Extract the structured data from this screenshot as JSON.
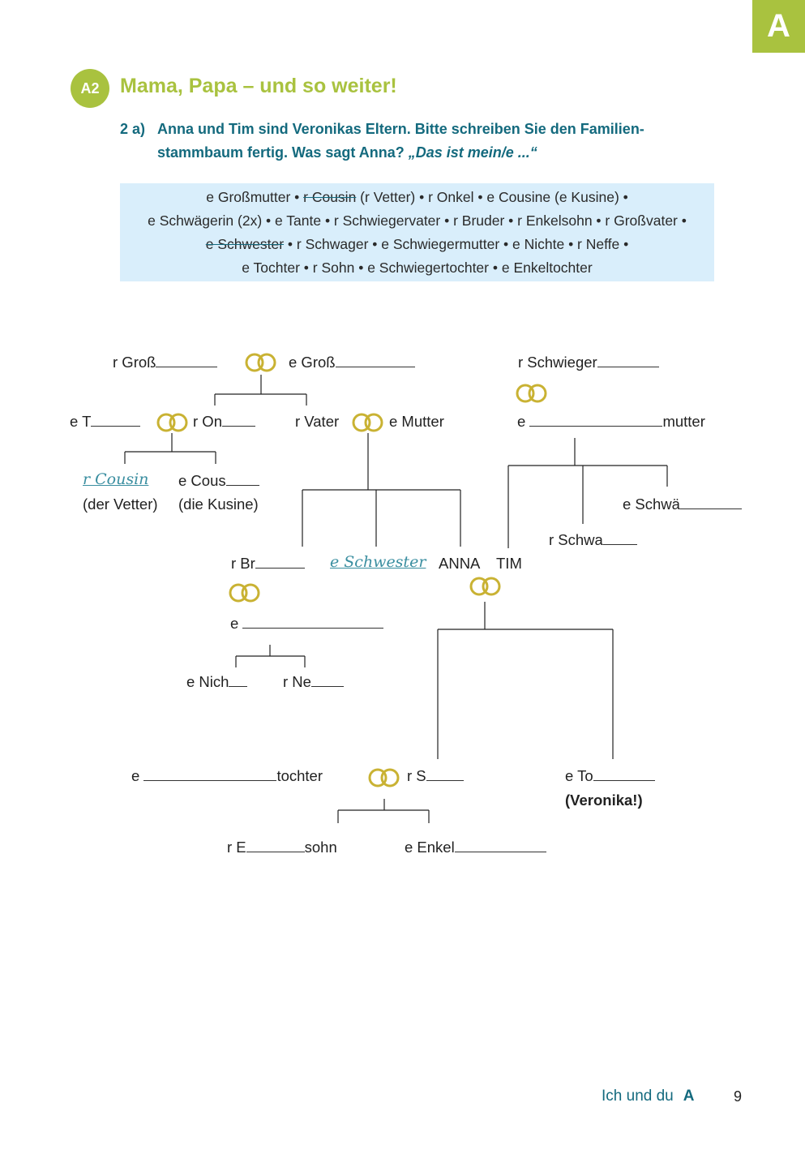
{
  "tab_letter": "A",
  "section_badge": "A2",
  "heading": "Mama, Papa – und so weiter!",
  "task": {
    "number": "2 a)",
    "line1": "Anna und Tim sind Veronikas Eltern. Bitte schreiben Sie den Familien-",
    "line2_text": "stammbaum fertig. Was sagt Anna? ",
    "line2_quote": "„Das ist mein/e ...“"
  },
  "wordbox": {
    "row1_a": "e Großmutter • ",
    "row1_strike": "r Cousin",
    "row1_b": " (r Vetter) • r Onkel • e Cousine (e Kusine) •",
    "row2": "e Schwägerin (2x) • e Tante • r Schwiegervater • r Bruder • r Enkelsohn • r Großvater •",
    "row3_strike": "e Schwester",
    "row3_b": " • r Schwager • e Schwiegermutter • e Nichte • r Neffe •",
    "row4": "e Tochter • r Sohn • e Schwiegertochter • e Enkeltochter"
  },
  "tree": {
    "grossvater": "r Groß",
    "grossmutter": "e Groß",
    "schwiegervater": "r Schwieger",
    "tante": "e T",
    "onkel": "r On",
    "vater": "r Vater",
    "mutter": "e Mutter",
    "schwiegermutter_prefix": "e",
    "schwiegermutter_suffix": "mutter",
    "cousin_answer": "r Cousin",
    "cousin_note": "(der Vetter)",
    "cousine": "e Cous",
    "cousine_note": "(die Kusine)",
    "schwaegerin": "e Schwä",
    "schwager": "r Schwa",
    "bruder": "r Br",
    "schwester_answer": "e Schwester",
    "anna": "ANNA",
    "tim": "TIM",
    "bruder_partner": "e",
    "nichte": "e Nich",
    "neffe": "r Ne",
    "schwiegertochter_prefix": "e",
    "schwiegertochter_suffix": "tochter",
    "sohn": "r S",
    "tochter": "e To",
    "veronika": "(Veronika!)",
    "enkelsohn_prefix": "r E",
    "enkelsohn_suffix": "sohn",
    "enkeltochter": "e Enkel"
  },
  "footer": {
    "title": "Ich und du",
    "letter": "A",
    "page": "9"
  },
  "colors": {
    "accent_green": "#a9c23f",
    "teal": "#146a7e",
    "box_blue": "#d9eefb",
    "ring_gold": "#c9b233"
  }
}
